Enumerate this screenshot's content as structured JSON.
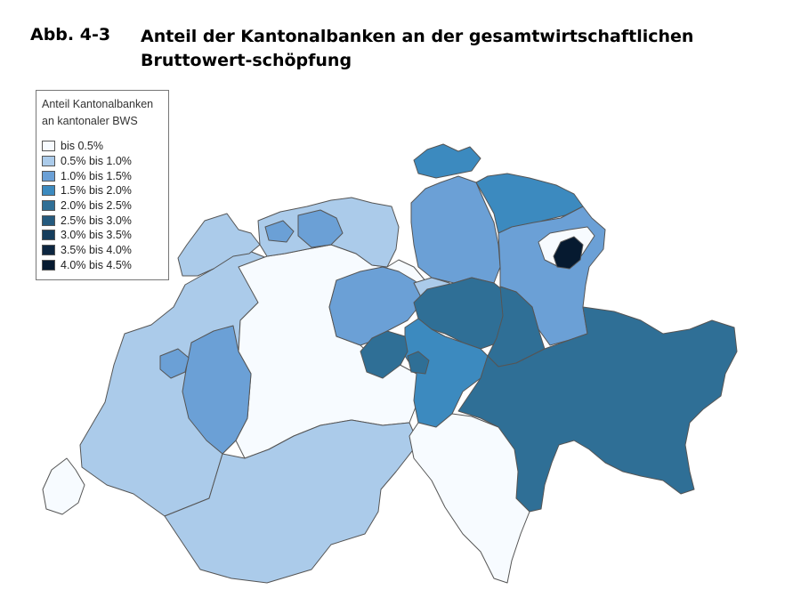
{
  "figure": {
    "number": "Abb. 4-3",
    "title": "Anteil der Kantonalbanken an der gesamtwirtschaftlichen Bruttowert-schöpfung"
  },
  "legend": {
    "title_line1": "Anteil Kantonalbanken",
    "title_line2": "an kantonaler BWS",
    "classes": [
      {
        "label": "bis 0.5%",
        "color": "#f7fbff"
      },
      {
        "label": "0.5% bis 1.0%",
        "color": "#abcbea"
      },
      {
        "label": "1.0% bis 1.5%",
        "color": "#6ba0d6"
      },
      {
        "label": "1.5% bis 2.0%",
        "color": "#3c8abf"
      },
      {
        "label": "2.0% bis 2.5%",
        "color": "#2f6f96"
      },
      {
        "label": "2.5% bis 3.0%",
        "color": "#255a7e"
      },
      {
        "label": "3.0% bis 3.5%",
        "color": "#163d5c"
      },
      {
        "label": "3.5% bis 4.0%",
        "color": "#0d2640"
      },
      {
        "label": "4.0% bis 4.5%",
        "color": "#061a30"
      }
    ]
  },
  "regions": [
    {
      "id": "west",
      "class_index": 1
    },
    {
      "id": "bern",
      "class_index": 0
    },
    {
      "id": "valais",
      "class_index": 1
    },
    {
      "id": "fribourg",
      "class_index": 2
    },
    {
      "id": "neuchatel",
      "class_index": 1
    },
    {
      "id": "solothurn",
      "class_index": 2
    },
    {
      "id": "basel-landschaft",
      "class_index": 1
    },
    {
      "id": "aargau",
      "class_index": 1
    },
    {
      "id": "zurich",
      "class_index": 2
    },
    {
      "id": "schaffhausen",
      "class_index": 3
    },
    {
      "id": "thurgau",
      "class_index": 3
    },
    {
      "id": "st-gallen",
      "class_index": 2
    },
    {
      "id": "appenzell-ar",
      "class_index": 0
    },
    {
      "id": "appenzell-ir",
      "class_index": 8
    },
    {
      "id": "lucerne",
      "class_index": 2
    },
    {
      "id": "zug",
      "class_index": 1
    },
    {
      "id": "schwyz",
      "class_index": 4
    },
    {
      "id": "glarus",
      "class_index": 4
    },
    {
      "id": "obwalden",
      "class_index": 4
    },
    {
      "id": "nidwalden",
      "class_index": 4
    },
    {
      "id": "uri",
      "class_index": 3
    },
    {
      "id": "graubunden",
      "class_index": 4
    },
    {
      "id": "ticino",
      "class_index": 0
    },
    {
      "id": "geneva",
      "class_index": 0
    }
  ]
}
